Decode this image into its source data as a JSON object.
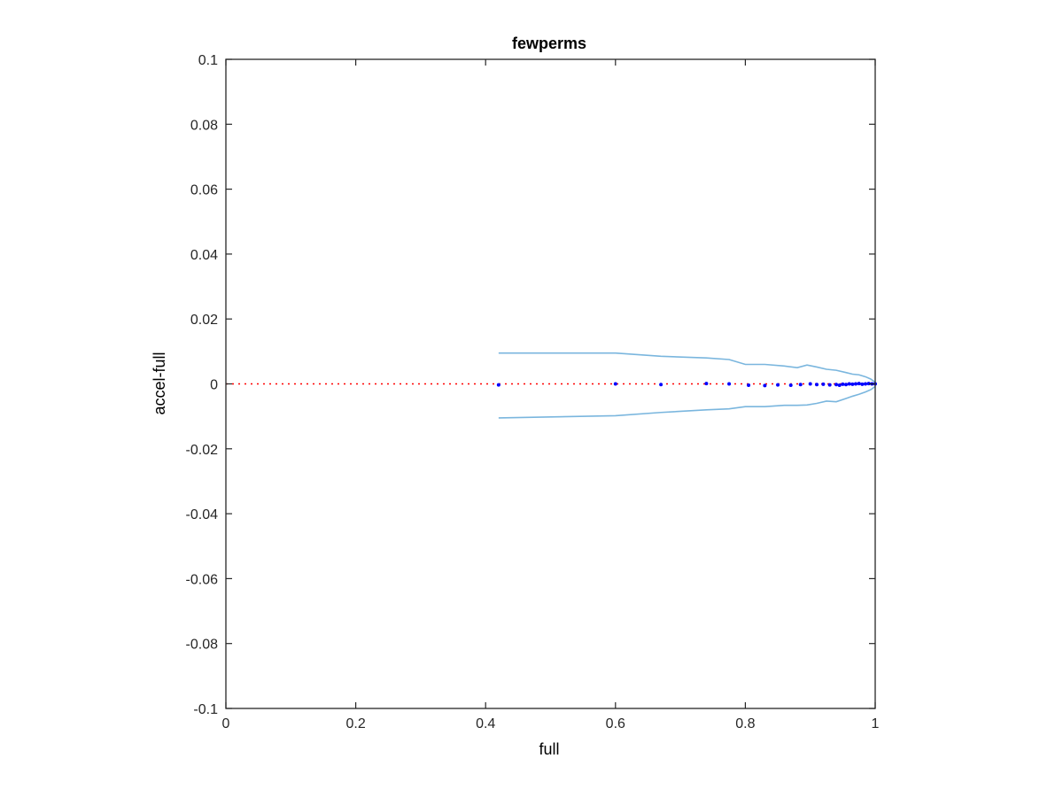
{
  "chart_data": {
    "type": "scatter",
    "title": "fewperms",
    "xlabel": "full",
    "ylabel": "accel-full",
    "xlim": [
      0,
      1
    ],
    "ylim": [
      -0.1,
      0.1
    ],
    "x_ticks": [
      "0",
      "0.2",
      "0.4",
      "0.6",
      "0.8",
      "1"
    ],
    "y_ticks": [
      "-0.1",
      "-0.08",
      "-0.06",
      "-0.04",
      "-0.02",
      "0",
      "0.02",
      "0.04",
      "0.06",
      "0.08",
      "0.1"
    ],
    "grid": false,
    "colors": {
      "points": "#0000ff",
      "bounds": "#7ab6de",
      "reference": "#ff0000",
      "axes": "#262626"
    },
    "reference_line": {
      "y": 0,
      "style": "dotted"
    },
    "upper_bound": {
      "x": [
        0.42,
        0.6,
        0.67,
        0.74,
        0.775,
        0.8,
        0.83,
        0.86,
        0.88,
        0.895,
        0.91,
        0.925,
        0.94,
        0.955,
        0.965,
        0.975,
        0.985,
        0.993,
        1.0
      ],
      "y": [
        0.0095,
        0.0095,
        0.0085,
        0.008,
        0.0075,
        0.006,
        0.006,
        0.0055,
        0.005,
        0.0058,
        0.0052,
        0.0045,
        0.0042,
        0.0035,
        0.003,
        0.0028,
        0.0022,
        0.0015,
        0.0005
      ]
    },
    "lower_bound": {
      "x": [
        0.42,
        0.6,
        0.67,
        0.74,
        0.775,
        0.8,
        0.83,
        0.86,
        0.88,
        0.895,
        0.91,
        0.925,
        0.94,
        0.955,
        0.965,
        0.975,
        0.985,
        0.993,
        1.0
      ],
      "y": [
        -0.0105,
        -0.0098,
        -0.0088,
        -0.008,
        -0.0077,
        -0.007,
        -0.007,
        -0.0066,
        -0.0066,
        -0.0065,
        -0.006,
        -0.0053,
        -0.0055,
        -0.0045,
        -0.0038,
        -0.0032,
        -0.0025,
        -0.0018,
        -0.0008
      ]
    },
    "points": {
      "x": [
        0.42,
        0.6,
        0.67,
        0.74,
        0.775,
        0.805,
        0.83,
        0.85,
        0.87,
        0.885,
        0.9,
        0.91,
        0.92,
        0.93,
        0.94,
        0.945,
        0.95,
        0.955,
        0.96,
        0.965,
        0.97,
        0.975,
        0.98,
        0.985,
        0.99,
        0.995,
        1.0
      ],
      "y": [
        -0.0003,
        0.0,
        -0.0002,
        0.0001,
        0.0,
        -0.0004,
        -0.0005,
        -0.0003,
        -0.0004,
        -0.0002,
        0.0,
        -0.0002,
        -0.0001,
        -0.0003,
        -0.0002,
        -0.0004,
        -0.0001,
        -0.0002,
        0.0,
        -0.0001,
        0.0,
        0.0001,
        -0.0001,
        0.0,
        0.0001,
        0.0,
        0.0
      ]
    }
  }
}
